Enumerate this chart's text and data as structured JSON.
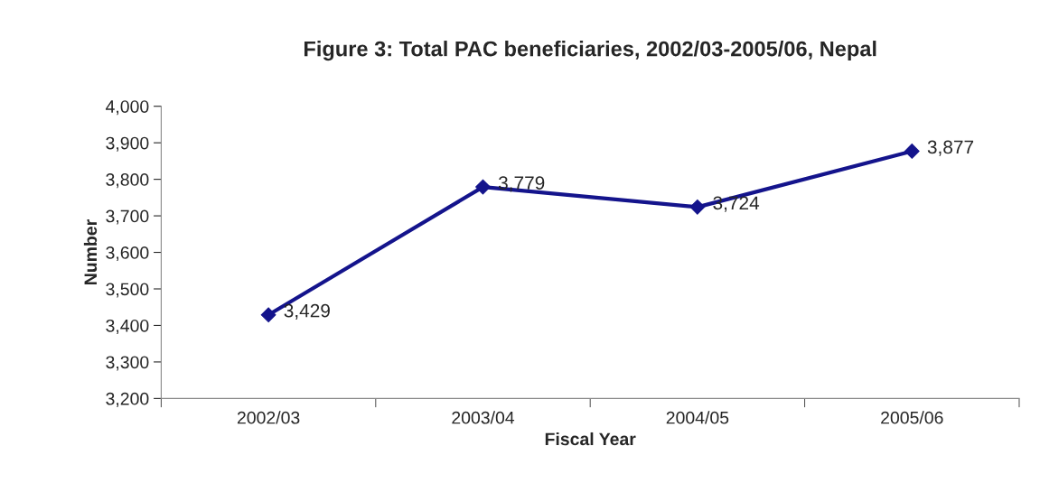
{
  "chart_data": {
    "type": "line",
    "title": "Figure 3: Total PAC beneficiaries, 2002/03-2005/06, Nepal",
    "xlabel": "Fiscal Year",
    "ylabel": "Number",
    "categories": [
      "2002/03",
      "2003/04",
      "2004/05",
      "2005/06"
    ],
    "series": [
      {
        "color": "#14148c",
        "values": [
          3429,
          3779,
          3724,
          3877
        ],
        "value_labels": [
          "3,429",
          "3,779",
          "3,724",
          "3,877"
        ]
      }
    ],
    "ylim": [
      3200,
      4000
    ],
    "yticks": [
      {
        "value": 3200,
        "label": "3,200"
      },
      {
        "value": 3300,
        "label": "3,300"
      },
      {
        "value": 3400,
        "label": "3,400"
      },
      {
        "value": 3500,
        "label": "3,500"
      },
      {
        "value": 3600,
        "label": "3,600"
      },
      {
        "value": 3700,
        "label": "3,700"
      },
      {
        "value": 3800,
        "label": "3,800"
      },
      {
        "value": 3900,
        "label": "3,900"
      },
      {
        "value": 4000,
        "label": "4,000"
      }
    ],
    "grid": false,
    "marker": "diamond",
    "line_style": "solid"
  }
}
